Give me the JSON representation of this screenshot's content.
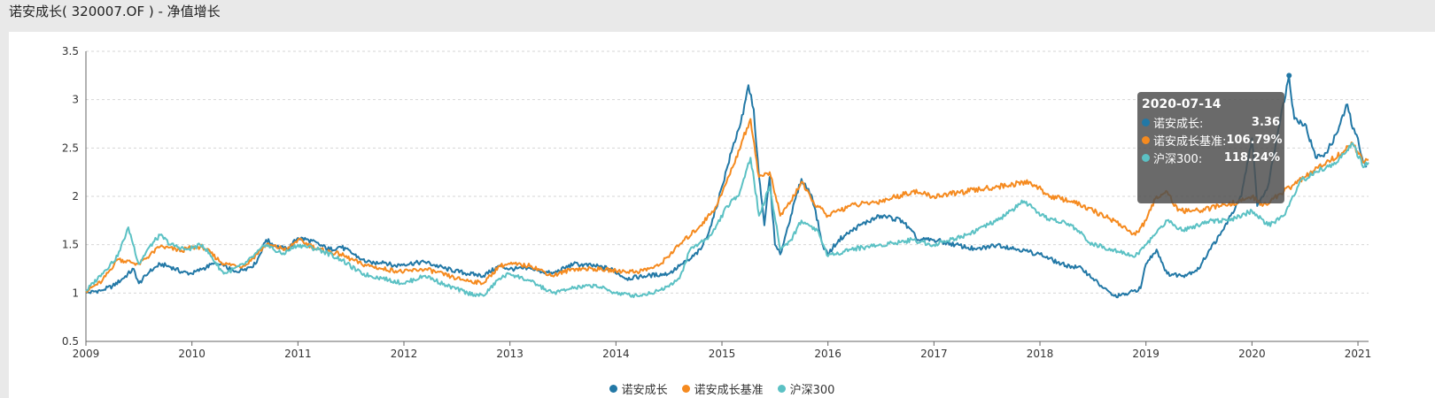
{
  "page": {
    "title": "诺安成长( 320007.OF ) - 净值增长"
  },
  "colors": {
    "series_1": "#2278a6",
    "series_2": "#f58a1f",
    "series_3": "#5bc1c4"
  },
  "tooltip": {
    "date": "2020-07-14",
    "rows": [
      {
        "name": "诺安成长:",
        "value": "3.36",
        "color": "#2278a6"
      },
      {
        "name": "诺安成长基准:",
        "value": "106.79%",
        "color": "#f58a1f"
      },
      {
        "name": "沪深300:",
        "value": "118.24%",
        "color": "#5bc1c4"
      }
    ]
  },
  "legend": [
    {
      "name": "诺安成长",
      "color": "#2278a6"
    },
    {
      "name": "诺安成长基准",
      "color": "#f58a1f"
    },
    {
      "name": "沪深300",
      "color": "#5bc1c4"
    }
  ],
  "chart_data": {
    "type": "line",
    "title": "",
    "xlabel": "",
    "ylabel": "",
    "xlim": [
      2009.0,
      2021.1
    ],
    "ylim": [
      0.5,
      3.5
    ],
    "xticks": [
      "2009",
      "2010",
      "2011",
      "2012",
      "2013",
      "2014",
      "2015",
      "2016",
      "2017",
      "2018",
      "2019",
      "2020",
      "2021"
    ],
    "yticks": [
      "0.5",
      "1",
      "1.5",
      "2",
      "2.5",
      "3",
      "3.5"
    ],
    "grid": "horizontal dashed",
    "legend_position": "bottom-center",
    "series": [
      {
        "name": "诺安成长",
        "color": "#2278a6",
        "points": [
          [
            2009.0,
            1.0
          ],
          [
            2009.15,
            1.03
          ],
          [
            2009.25,
            1.07
          ],
          [
            2009.35,
            1.15
          ],
          [
            2009.45,
            1.25
          ],
          [
            2009.5,
            1.1
          ],
          [
            2009.6,
            1.22
          ],
          [
            2009.7,
            1.3
          ],
          [
            2009.8,
            1.27
          ],
          [
            2009.9,
            1.22
          ],
          [
            2010.0,
            1.2
          ],
          [
            2010.1,
            1.25
          ],
          [
            2010.2,
            1.3
          ],
          [
            2010.3,
            1.28
          ],
          [
            2010.4,
            1.22
          ],
          [
            2010.5,
            1.25
          ],
          [
            2010.6,
            1.3
          ],
          [
            2010.7,
            1.55
          ],
          [
            2010.8,
            1.48
          ],
          [
            2010.9,
            1.45
          ],
          [
            2011.0,
            1.57
          ],
          [
            2011.1,
            1.55
          ],
          [
            2011.2,
            1.5
          ],
          [
            2011.3,
            1.45
          ],
          [
            2011.4,
            1.48
          ],
          [
            2011.5,
            1.42
          ],
          [
            2011.6,
            1.35
          ],
          [
            2011.7,
            1.3
          ],
          [
            2011.8,
            1.33
          ],
          [
            2011.9,
            1.28
          ],
          [
            2012.0,
            1.3
          ],
          [
            2012.2,
            1.32
          ],
          [
            2012.4,
            1.25
          ],
          [
            2012.6,
            1.2
          ],
          [
            2012.75,
            1.18
          ],
          [
            2012.9,
            1.28
          ],
          [
            2013.0,
            1.25
          ],
          [
            2013.2,
            1.25
          ],
          [
            2013.4,
            1.2
          ],
          [
            2013.6,
            1.3
          ],
          [
            2013.8,
            1.28
          ],
          [
            2013.95,
            1.25
          ],
          [
            2014.1,
            1.15
          ],
          [
            2014.3,
            1.18
          ],
          [
            2014.5,
            1.2
          ],
          [
            2014.6,
            1.28
          ],
          [
            2014.7,
            1.35
          ],
          [
            2014.8,
            1.45
          ],
          [
            2014.9,
            1.7
          ],
          [
            2015.0,
            2.1
          ],
          [
            2015.1,
            2.5
          ],
          [
            2015.2,
            2.85
          ],
          [
            2015.25,
            3.15
          ],
          [
            2015.3,
            2.9
          ],
          [
            2015.35,
            2.2
          ],
          [
            2015.4,
            1.7
          ],
          [
            2015.45,
            2.2
          ],
          [
            2015.5,
            1.5
          ],
          [
            2015.55,
            1.4
          ],
          [
            2015.65,
            1.8
          ],
          [
            2015.75,
            2.18
          ],
          [
            2015.85,
            2.0
          ],
          [
            2015.95,
            1.5
          ],
          [
            2016.0,
            1.4
          ],
          [
            2016.1,
            1.55
          ],
          [
            2016.3,
            1.7
          ],
          [
            2016.5,
            1.8
          ],
          [
            2016.7,
            1.75
          ],
          [
            2016.85,
            1.55
          ],
          [
            2017.0,
            1.55
          ],
          [
            2017.2,
            1.5
          ],
          [
            2017.4,
            1.45
          ],
          [
            2017.6,
            1.5
          ],
          [
            2017.8,
            1.45
          ],
          [
            2018.0,
            1.4
          ],
          [
            2018.2,
            1.3
          ],
          [
            2018.4,
            1.25
          ],
          [
            2018.5,
            1.15
          ],
          [
            2018.6,
            1.05
          ],
          [
            2018.7,
            0.97
          ],
          [
            2018.8,
            0.98
          ],
          [
            2018.95,
            1.05
          ],
          [
            2019.0,
            1.3
          ],
          [
            2019.1,
            1.45
          ],
          [
            2019.2,
            1.2
          ],
          [
            2019.35,
            1.18
          ],
          [
            2019.5,
            1.25
          ],
          [
            2019.6,
            1.45
          ],
          [
            2019.7,
            1.6
          ],
          [
            2019.8,
            1.8
          ],
          [
            2019.9,
            2.0
          ],
          [
            2020.0,
            2.6
          ],
          [
            2020.05,
            1.9
          ],
          [
            2020.15,
            2.1
          ],
          [
            2020.25,
            2.7
          ],
          [
            2020.35,
            3.25
          ],
          [
            2020.4,
            2.8
          ],
          [
            2020.5,
            2.75
          ],
          [
            2020.6,
            2.4
          ],
          [
            2020.7,
            2.45
          ],
          [
            2020.8,
            2.65
          ],
          [
            2020.9,
            2.95
          ],
          [
            2020.95,
            2.7
          ],
          [
            2021.0,
            2.6
          ],
          [
            2021.05,
            2.35
          ],
          [
            2021.08,
            2.3
          ]
        ]
      },
      {
        "name": "诺安成长基准",
        "color": "#f58a1f",
        "points": [
          [
            2009.0,
            1.02
          ],
          [
            2009.15,
            1.12
          ],
          [
            2009.3,
            1.35
          ],
          [
            2009.5,
            1.3
          ],
          [
            2009.7,
            1.48
          ],
          [
            2009.9,
            1.44
          ],
          [
            2010.0,
            1.47
          ],
          [
            2010.1,
            1.48
          ],
          [
            2010.3,
            1.3
          ],
          [
            2010.5,
            1.28
          ],
          [
            2010.7,
            1.5
          ],
          [
            2010.9,
            1.45
          ],
          [
            2011.0,
            1.55
          ],
          [
            2011.2,
            1.45
          ],
          [
            2011.4,
            1.4
          ],
          [
            2011.6,
            1.3
          ],
          [
            2011.8,
            1.25
          ],
          [
            2012.0,
            1.22
          ],
          [
            2012.2,
            1.25
          ],
          [
            2012.5,
            1.15
          ],
          [
            2012.75,
            1.1
          ],
          [
            2012.9,
            1.28
          ],
          [
            2013.0,
            1.3
          ],
          [
            2013.2,
            1.28
          ],
          [
            2013.4,
            1.18
          ],
          [
            2013.6,
            1.25
          ],
          [
            2013.8,
            1.25
          ],
          [
            2014.0,
            1.23
          ],
          [
            2014.2,
            1.22
          ],
          [
            2014.4,
            1.28
          ],
          [
            2014.6,
            1.5
          ],
          [
            2014.8,
            1.7
          ],
          [
            2014.95,
            1.9
          ],
          [
            2015.1,
            2.3
          ],
          [
            2015.2,
            2.6
          ],
          [
            2015.27,
            2.8
          ],
          [
            2015.35,
            2.2
          ],
          [
            2015.45,
            2.25
          ],
          [
            2015.55,
            1.8
          ],
          [
            2015.65,
            1.95
          ],
          [
            2015.75,
            2.15
          ],
          [
            2015.85,
            1.95
          ],
          [
            2016.0,
            1.8
          ],
          [
            2016.2,
            1.9
          ],
          [
            2016.5,
            1.95
          ],
          [
            2016.8,
            2.05
          ],
          [
            2017.0,
            2.0
          ],
          [
            2017.3,
            2.05
          ],
          [
            2017.6,
            2.1
          ],
          [
            2017.9,
            2.15
          ],
          [
            2018.1,
            2.0
          ],
          [
            2018.3,
            1.95
          ],
          [
            2018.5,
            1.85
          ],
          [
            2018.7,
            1.75
          ],
          [
            2018.9,
            1.6
          ],
          [
            2019.0,
            1.75
          ],
          [
            2019.1,
            2.0
          ],
          [
            2019.2,
            2.05
          ],
          [
            2019.3,
            1.85
          ],
          [
            2019.5,
            1.85
          ],
          [
            2019.7,
            1.9
          ],
          [
            2019.9,
            1.95
          ],
          [
            2020.0,
            2.0
          ],
          [
            2020.1,
            1.9
          ],
          [
            2020.3,
            2.05
          ],
          [
            2020.5,
            2.2
          ],
          [
            2020.7,
            2.35
          ],
          [
            2020.85,
            2.45
          ],
          [
            2020.95,
            2.55
          ],
          [
            2021.05,
            2.35
          ],
          [
            2021.1,
            2.38
          ]
        ]
      },
      {
        "name": "沪深300",
        "color": "#5bc1c4",
        "points": [
          [
            2009.0,
            1.02
          ],
          [
            2009.15,
            1.2
          ],
          [
            2009.3,
            1.38
          ],
          [
            2009.4,
            1.68
          ],
          [
            2009.5,
            1.3
          ],
          [
            2009.6,
            1.48
          ],
          [
            2009.7,
            1.6
          ],
          [
            2009.8,
            1.5
          ],
          [
            2009.95,
            1.45
          ],
          [
            2010.1,
            1.5
          ],
          [
            2010.3,
            1.2
          ],
          [
            2010.5,
            1.3
          ],
          [
            2010.7,
            1.5
          ],
          [
            2010.85,
            1.4
          ],
          [
            2011.0,
            1.5
          ],
          [
            2011.2,
            1.45
          ],
          [
            2011.4,
            1.35
          ],
          [
            2011.6,
            1.2
          ],
          [
            2011.8,
            1.15
          ],
          [
            2012.0,
            1.1
          ],
          [
            2012.2,
            1.18
          ],
          [
            2012.4,
            1.08
          ],
          [
            2012.6,
            1.0
          ],
          [
            2012.75,
            0.97
          ],
          [
            2012.9,
            1.15
          ],
          [
            2013.0,
            1.2
          ],
          [
            2013.2,
            1.12
          ],
          [
            2013.4,
            1.0
          ],
          [
            2013.6,
            1.05
          ],
          [
            2013.8,
            1.08
          ],
          [
            2014.0,
            1.0
          ],
          [
            2014.2,
            0.97
          ],
          [
            2014.4,
            1.02
          ],
          [
            2014.6,
            1.15
          ],
          [
            2014.7,
            1.45
          ],
          [
            2014.9,
            1.6
          ],
          [
            2015.05,
            1.9
          ],
          [
            2015.15,
            2.0
          ],
          [
            2015.27,
            2.4
          ],
          [
            2015.35,
            1.8
          ],
          [
            2015.45,
            2.1
          ],
          [
            2015.55,
            1.45
          ],
          [
            2015.65,
            1.55
          ],
          [
            2015.75,
            1.75
          ],
          [
            2015.9,
            1.65
          ],
          [
            2016.0,
            1.38
          ],
          [
            2016.2,
            1.45
          ],
          [
            2016.5,
            1.5
          ],
          [
            2016.8,
            1.55
          ],
          [
            2017.0,
            1.5
          ],
          [
            2017.3,
            1.6
          ],
          [
            2017.6,
            1.75
          ],
          [
            2017.85,
            1.95
          ],
          [
            2018.0,
            1.8
          ],
          [
            2018.3,
            1.7
          ],
          [
            2018.5,
            1.5
          ],
          [
            2018.7,
            1.45
          ],
          [
            2018.9,
            1.38
          ],
          [
            2019.0,
            1.5
          ],
          [
            2019.2,
            1.75
          ],
          [
            2019.35,
            1.65
          ],
          [
            2019.6,
            1.75
          ],
          [
            2019.8,
            1.75
          ],
          [
            2020.0,
            1.85
          ],
          [
            2020.15,
            1.7
          ],
          [
            2020.3,
            1.8
          ],
          [
            2020.35,
            1.9
          ],
          [
            2020.45,
            2.15
          ],
          [
            2020.6,
            2.25
          ],
          [
            2020.8,
            2.35
          ],
          [
            2020.95,
            2.55
          ],
          [
            2021.05,
            2.3
          ],
          [
            2021.1,
            2.35
          ]
        ]
      }
    ]
  }
}
